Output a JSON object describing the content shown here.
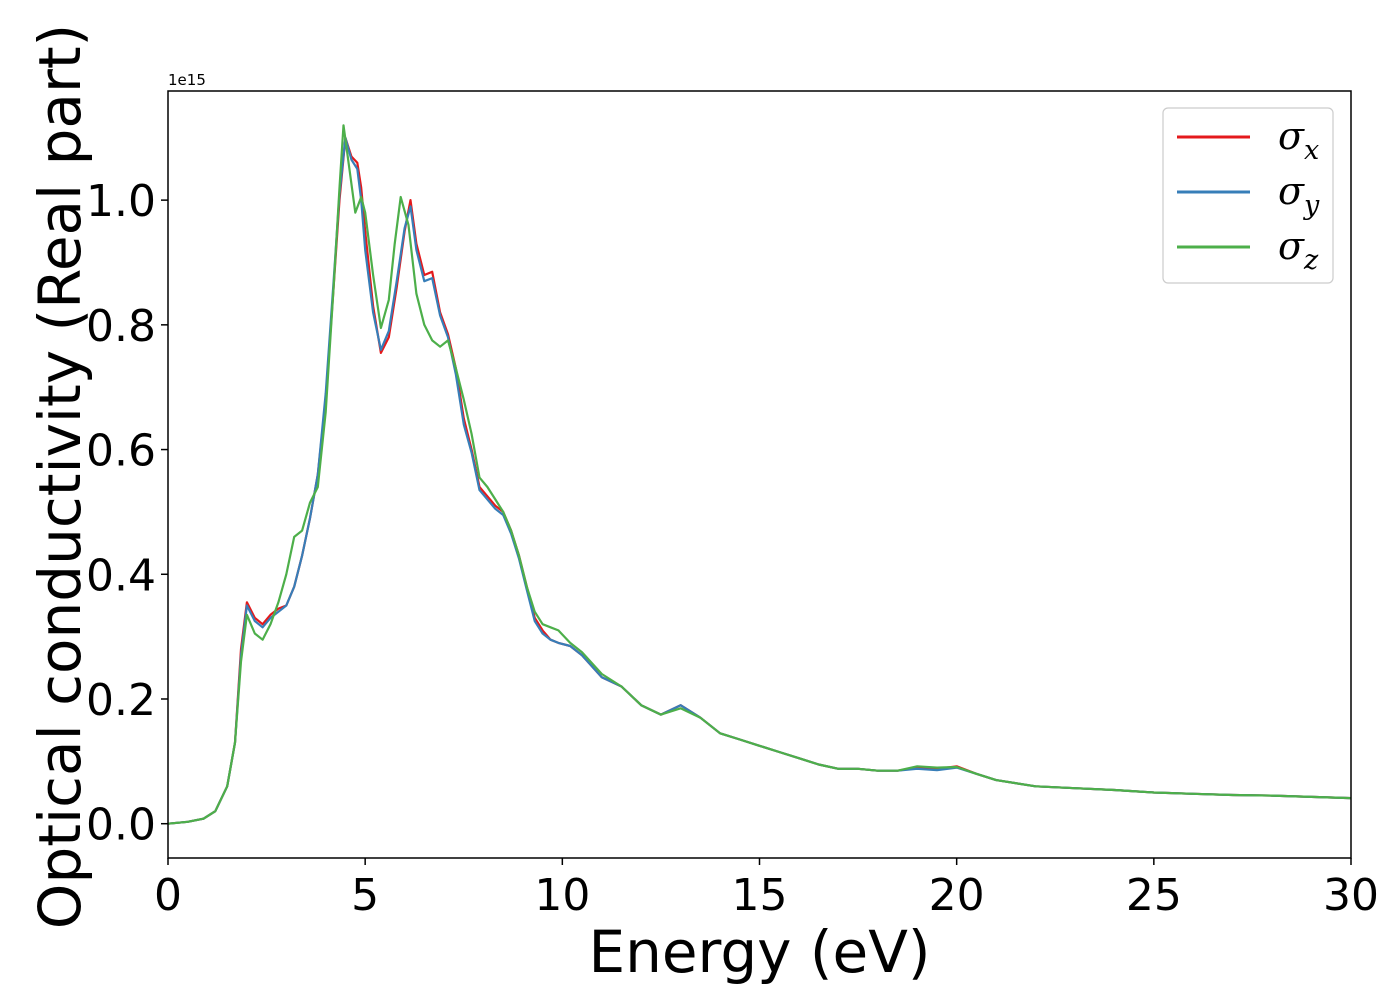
{
  "chart_data": {
    "type": "line",
    "title": "",
    "xlabel": "Energy (eV)",
    "ylabel": "Optical conductivity (Real part)",
    "y_offset_label": "1e15",
    "xlim": [
      0,
      30
    ],
    "ylim": [
      -0.055,
      1.175
    ],
    "xticks": [
      0,
      5,
      10,
      15,
      20,
      25,
      30
    ],
    "yticks": [
      0.0,
      0.2,
      0.4,
      0.6,
      0.8,
      1.0
    ],
    "ytick_labels": [
      "0.0",
      "0.2",
      "0.4",
      "0.6",
      "0.8",
      "1.0"
    ],
    "grid": false,
    "legend_position": "top-right",
    "colors": {
      "sigma_x": "#e41a1c",
      "sigma_y": "#377eb8",
      "sigma_z": "#4daf4a"
    },
    "series": [
      {
        "name": "σx",
        "label_main": "σ",
        "label_sub": "x",
        "color": "#e41a1c",
        "x": [
          0,
          0.5,
          0.9,
          1.2,
          1.5,
          1.7,
          1.85,
          2.0,
          2.2,
          2.4,
          2.6,
          2.8,
          3.0,
          3.2,
          3.4,
          3.6,
          3.8,
          4.0,
          4.2,
          4.35,
          4.5,
          4.65,
          4.8,
          4.9,
          5.0,
          5.2,
          5.4,
          5.6,
          5.8,
          6.0,
          6.15,
          6.3,
          6.5,
          6.7,
          6.9,
          7.1,
          7.3,
          7.5,
          7.7,
          7.9,
          8.1,
          8.3,
          8.5,
          8.7,
          8.9,
          9.1,
          9.3,
          9.5,
          9.7,
          9.9,
          10.2,
          10.5,
          11.0,
          11.5,
          12.0,
          12.5,
          13.0,
          13.5,
          14.0,
          14.5,
          15.0,
          15.5,
          16.0,
          16.5,
          17.0,
          17.5,
          18.0,
          18.5,
          19.0,
          19.5,
          20.0,
          20.5,
          21.0,
          22.0,
          23.0,
          24.0,
          25.0,
          26.0,
          27.0,
          28.0,
          29.0,
          30.0
        ],
        "y": [
          0.0,
          0.003,
          0.008,
          0.02,
          0.06,
          0.13,
          0.28,
          0.355,
          0.33,
          0.32,
          0.335,
          0.345,
          0.35,
          0.38,
          0.43,
          0.49,
          0.56,
          0.68,
          0.86,
          1.0,
          1.1,
          1.07,
          1.06,
          1.02,
          0.95,
          0.83,
          0.755,
          0.78,
          0.86,
          0.95,
          1.0,
          0.93,
          0.88,
          0.885,
          0.82,
          0.785,
          0.73,
          0.65,
          0.6,
          0.54,
          0.525,
          0.51,
          0.5,
          0.47,
          0.43,
          0.38,
          0.33,
          0.31,
          0.295,
          0.29,
          0.285,
          0.27,
          0.235,
          0.22,
          0.19,
          0.175,
          0.19,
          0.17,
          0.145,
          0.135,
          0.125,
          0.115,
          0.105,
          0.095,
          0.088,
          0.088,
          0.085,
          0.085,
          0.09,
          0.088,
          0.092,
          0.08,
          0.07,
          0.06,
          0.057,
          0.054,
          0.05,
          0.048,
          0.046,
          0.045,
          0.043,
          0.041
        ]
      },
      {
        "name": "σy",
        "label_main": "σ",
        "label_sub": "y",
        "color": "#377eb8",
        "x": [
          0,
          0.5,
          0.9,
          1.2,
          1.5,
          1.7,
          1.85,
          2.0,
          2.2,
          2.4,
          2.6,
          2.8,
          3.0,
          3.2,
          3.4,
          3.6,
          3.8,
          4.0,
          4.2,
          4.35,
          4.5,
          4.65,
          4.8,
          4.9,
          5.0,
          5.2,
          5.4,
          5.6,
          5.8,
          6.0,
          6.15,
          6.3,
          6.5,
          6.7,
          6.9,
          7.1,
          7.3,
          7.5,
          7.7,
          7.9,
          8.1,
          8.3,
          8.5,
          8.7,
          8.9,
          9.1,
          9.3,
          9.5,
          9.7,
          9.9,
          10.2,
          10.5,
          11.0,
          11.5,
          12.0,
          12.5,
          13.0,
          13.5,
          14.0,
          14.5,
          15.0,
          15.5,
          16.0,
          16.5,
          17.0,
          17.5,
          18.0,
          18.5,
          19.0,
          19.5,
          20.0,
          20.5,
          21.0,
          22.0,
          23.0,
          24.0,
          25.0,
          26.0,
          27.0,
          28.0,
          29.0,
          30.0
        ],
        "y": [
          0.0,
          0.003,
          0.008,
          0.02,
          0.06,
          0.13,
          0.27,
          0.35,
          0.325,
          0.315,
          0.33,
          0.34,
          0.35,
          0.38,
          0.43,
          0.49,
          0.56,
          0.69,
          0.87,
          1.01,
          1.1,
          1.065,
          1.05,
          1.0,
          0.92,
          0.82,
          0.76,
          0.79,
          0.87,
          0.955,
          0.99,
          0.92,
          0.87,
          0.875,
          0.815,
          0.78,
          0.72,
          0.64,
          0.595,
          0.535,
          0.52,
          0.505,
          0.495,
          0.465,
          0.425,
          0.375,
          0.325,
          0.305,
          0.295,
          0.29,
          0.285,
          0.27,
          0.235,
          0.22,
          0.19,
          0.175,
          0.19,
          0.17,
          0.145,
          0.135,
          0.125,
          0.115,
          0.105,
          0.095,
          0.088,
          0.088,
          0.085,
          0.085,
          0.088,
          0.086,
          0.09,
          0.08,
          0.07,
          0.06,
          0.057,
          0.054,
          0.05,
          0.048,
          0.046,
          0.045,
          0.043,
          0.041
        ]
      },
      {
        "name": "σz",
        "label_main": "σ",
        "label_sub": "z",
        "color": "#4daf4a",
        "x": [
          0,
          0.5,
          0.9,
          1.2,
          1.5,
          1.7,
          1.85,
          2.0,
          2.2,
          2.4,
          2.6,
          2.8,
          3.0,
          3.2,
          3.4,
          3.6,
          3.8,
          4.0,
          4.2,
          4.35,
          4.45,
          4.6,
          4.75,
          4.9,
          5.0,
          5.2,
          5.4,
          5.6,
          5.75,
          5.9,
          6.1,
          6.3,
          6.5,
          6.7,
          6.9,
          7.1,
          7.3,
          7.5,
          7.7,
          7.9,
          8.1,
          8.3,
          8.5,
          8.7,
          8.9,
          9.1,
          9.3,
          9.5,
          9.7,
          9.9,
          10.2,
          10.5,
          11.0,
          11.5,
          12.0,
          12.5,
          13.0,
          13.5,
          14.0,
          14.5,
          15.0,
          15.5,
          16.0,
          16.5,
          17.0,
          17.5,
          18.0,
          18.5,
          19.0,
          19.5,
          20.0,
          20.5,
          21.0,
          22.0,
          23.0,
          24.0,
          25.0,
          26.0,
          27.0,
          28.0,
          29.0,
          30.0
        ],
        "y": [
          0.0,
          0.003,
          0.008,
          0.02,
          0.06,
          0.13,
          0.26,
          0.335,
          0.305,
          0.295,
          0.32,
          0.355,
          0.4,
          0.46,
          0.47,
          0.515,
          0.54,
          0.66,
          0.86,
          1.02,
          1.12,
          1.05,
          0.98,
          1.005,
          0.98,
          0.88,
          0.795,
          0.84,
          0.93,
          1.005,
          0.96,
          0.85,
          0.8,
          0.775,
          0.765,
          0.775,
          0.73,
          0.68,
          0.625,
          0.555,
          0.54,
          0.52,
          0.5,
          0.47,
          0.43,
          0.38,
          0.34,
          0.32,
          0.315,
          0.31,
          0.29,
          0.275,
          0.24,
          0.22,
          0.19,
          0.175,
          0.185,
          0.17,
          0.145,
          0.135,
          0.125,
          0.115,
          0.105,
          0.095,
          0.088,
          0.088,
          0.085,
          0.085,
          0.092,
          0.09,
          0.091,
          0.08,
          0.07,
          0.06,
          0.057,
          0.054,
          0.05,
          0.048,
          0.046,
          0.045,
          0.043,
          0.041
        ]
      }
    ]
  }
}
